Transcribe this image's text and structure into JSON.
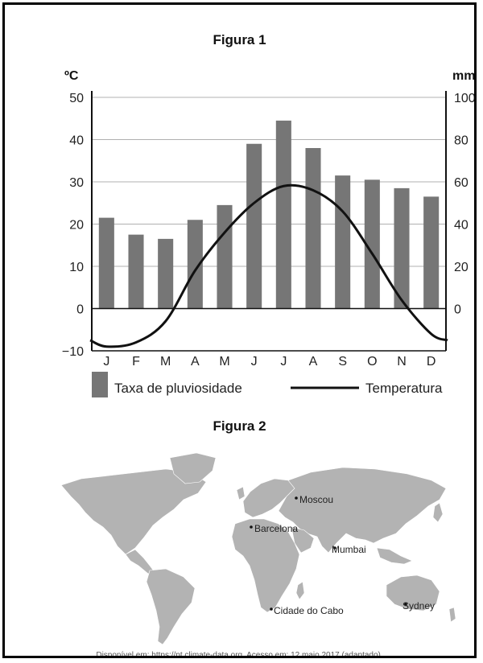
{
  "figure1_title": "Figura 1",
  "figure2_title": "Figura 2",
  "chart_data": {
    "type": "bar+line",
    "categories": [
      "J",
      "F",
      "M",
      "A",
      "M",
      "J",
      "J",
      "A",
      "S",
      "O",
      "N",
      "D"
    ],
    "left_axis": {
      "unit": "ºC",
      "min": -10,
      "max": 50,
      "ticks": [
        -10,
        0,
        10,
        20,
        30,
        40,
        50
      ]
    },
    "right_axis": {
      "unit": "mm",
      "min": 0,
      "max": 100,
      "ticks": [
        0,
        20,
        40,
        60,
        80,
        100
      ]
    },
    "series": [
      {
        "name": "Taxa de pluviosidade",
        "kind": "bar",
        "axis": "right",
        "values": [
          43,
          35,
          33,
          42,
          49,
          78,
          89,
          76,
          63,
          61,
          57,
          53
        ],
        "color": "#767676"
      },
      {
        "name": "Temperatura",
        "kind": "line",
        "axis": "left",
        "values": [
          -9,
          -8,
          -3,
          9,
          18,
          25,
          29,
          28,
          23,
          13,
          2,
          -6
        ],
        "color": "#111111"
      }
    ],
    "grid": true,
    "legend": "bottom"
  },
  "map": {
    "cities": [
      "Moscou",
      "Barcelona",
      "Mumbai",
      "Cidade do Cabo",
      "Sydney"
    ],
    "land_color": "#b3b3b3"
  },
  "source_text": "Disponível em: https://pt.climate-data.org. Acesso em: 12 maio 2017 (adaptado)."
}
